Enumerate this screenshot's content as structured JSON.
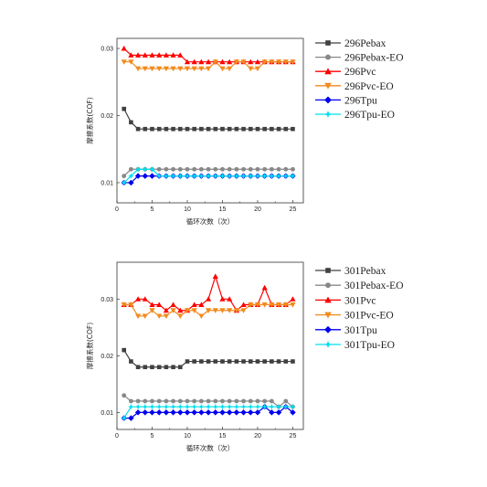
{
  "chart_data": [
    {
      "type": "line",
      "title": "",
      "xlabel": "循环次数（次）",
      "ylabel": "摩擦系数(COF)",
      "xlim": [
        0,
        26.5
      ],
      "ylim": [
        0.007,
        0.0315
      ],
      "xticks": [
        0,
        5,
        10,
        15,
        20,
        25
      ],
      "yticks": [
        0.01,
        0.02,
        0.03
      ],
      "x": [
        1,
        2,
        3,
        4,
        5,
        6,
        7,
        8,
        9,
        10,
        11,
        12,
        13,
        14,
        15,
        16,
        17,
        18,
        19,
        20,
        21,
        22,
        23,
        24,
        25
      ],
      "grid": false,
      "legend": "right",
      "series": [
        {
          "name": "296Pebax",
          "color": "#404040",
          "marker": "square",
          "values": [
            0.021,
            0.019,
            0.018,
            0.018,
            0.018,
            0.018,
            0.018,
            0.018,
            0.018,
            0.018,
            0.018,
            0.018,
            0.018,
            0.018,
            0.018,
            0.018,
            0.018,
            0.018,
            0.018,
            0.018,
            0.018,
            0.018,
            0.018,
            0.018,
            0.018
          ]
        },
        {
          "name": "296Pebax-EO",
          "color": "#888888",
          "marker": "circle",
          "values": [
            0.011,
            0.012,
            0.012,
            0.012,
            0.012,
            0.012,
            0.012,
            0.012,
            0.012,
            0.012,
            0.012,
            0.012,
            0.012,
            0.012,
            0.012,
            0.012,
            0.012,
            0.012,
            0.012,
            0.012,
            0.012,
            0.012,
            0.012,
            0.012,
            0.012
          ]
        },
        {
          "name": "296Pvc",
          "color": "#ff0000",
          "marker": "triangle-up",
          "values": [
            0.03,
            0.029,
            0.029,
            0.029,
            0.029,
            0.029,
            0.029,
            0.029,
            0.029,
            0.028,
            0.028,
            0.028,
            0.028,
            0.028,
            0.028,
            0.028,
            0.028,
            0.028,
            0.028,
            0.028,
            0.028,
            0.028,
            0.028,
            0.028,
            0.028
          ]
        },
        {
          "name": "296Pvc-EO",
          "color": "#f28a1c",
          "marker": "triangle-down",
          "values": [
            0.028,
            0.028,
            0.027,
            0.027,
            0.027,
            0.027,
            0.027,
            0.027,
            0.027,
            0.027,
            0.027,
            0.027,
            0.027,
            0.028,
            0.027,
            0.027,
            0.028,
            0.028,
            0.027,
            0.027,
            0.028,
            0.028,
            0.028,
            0.028,
            0.028
          ]
        },
        {
          "name": "296Tpu",
          "color": "#0000ee",
          "marker": "diamond",
          "values": [
            0.01,
            0.01,
            0.011,
            0.011,
            0.011,
            0.011,
            0.011,
            0.011,
            0.011,
            0.011,
            0.011,
            0.011,
            0.011,
            0.011,
            0.011,
            0.011,
            0.011,
            0.011,
            0.011,
            0.011,
            0.011,
            0.011,
            0.011,
            0.011,
            0.011
          ]
        },
        {
          "name": "296Tpu-EO",
          "color": "#00e0f0",
          "marker": "star",
          "values": [
            0.01,
            0.011,
            0.012,
            0.012,
            0.012,
            0.011,
            0.011,
            0.011,
            0.011,
            0.011,
            0.011,
            0.011,
            0.011,
            0.011,
            0.011,
            0.011,
            0.011,
            0.011,
            0.011,
            0.011,
            0.011,
            0.011,
            0.011,
            0.011,
            0.011
          ]
        }
      ]
    },
    {
      "type": "line",
      "title": "",
      "xlabel": "循环次数（次）",
      "ylabel": "摩擦系数(COF)",
      "xlim": [
        0,
        26.5
      ],
      "ylim": [
        0.007,
        0.0365
      ],
      "xticks": [
        0,
        5,
        10,
        15,
        20,
        25
      ],
      "yticks": [
        0.01,
        0.02,
        0.03
      ],
      "x": [
        1,
        2,
        3,
        4,
        5,
        6,
        7,
        8,
        9,
        10,
        11,
        12,
        13,
        14,
        15,
        16,
        17,
        18,
        19,
        20,
        21,
        22,
        23,
        24,
        25
      ],
      "grid": false,
      "legend": "right",
      "series": [
        {
          "name": "301Pebax",
          "color": "#404040",
          "marker": "square",
          "values": [
            0.021,
            0.019,
            0.018,
            0.018,
            0.018,
            0.018,
            0.018,
            0.018,
            0.018,
            0.019,
            0.019,
            0.019,
            0.019,
            0.019,
            0.019,
            0.019,
            0.019,
            0.019,
            0.019,
            0.019,
            0.019,
            0.019,
            0.019,
            0.019,
            0.019
          ]
        },
        {
          "name": "301Pebax-EO",
          "color": "#888888",
          "marker": "circle",
          "values": [
            0.013,
            0.012,
            0.012,
            0.012,
            0.012,
            0.012,
            0.012,
            0.012,
            0.012,
            0.012,
            0.012,
            0.012,
            0.012,
            0.012,
            0.012,
            0.012,
            0.012,
            0.012,
            0.012,
            0.012,
            0.012,
            0.012,
            0.011,
            0.012,
            0.011
          ]
        },
        {
          "name": "301Pvc",
          "color": "#ff0000",
          "marker": "triangle-up",
          "values": [
            0.029,
            0.029,
            0.03,
            0.03,
            0.029,
            0.029,
            0.028,
            0.029,
            0.028,
            0.028,
            0.029,
            0.029,
            0.03,
            0.034,
            0.03,
            0.03,
            0.028,
            0.029,
            0.029,
            0.029,
            0.032,
            0.029,
            0.029,
            0.029,
            0.03
          ]
        },
        {
          "name": "301Pvc-EO",
          "color": "#f28a1c",
          "marker": "triangle-down",
          "values": [
            0.029,
            0.029,
            0.027,
            0.027,
            0.028,
            0.027,
            0.027,
            0.028,
            0.027,
            0.028,
            0.028,
            0.027,
            0.028,
            0.028,
            0.028,
            0.028,
            0.028,
            0.028,
            0.029,
            0.029,
            0.029,
            0.029,
            0.029,
            0.029,
            0.029
          ]
        },
        {
          "name": "301Tpu",
          "color": "#0000ee",
          "marker": "diamond",
          "values": [
            0.009,
            0.009,
            0.01,
            0.01,
            0.01,
            0.01,
            0.01,
            0.01,
            0.01,
            0.01,
            0.01,
            0.01,
            0.01,
            0.01,
            0.01,
            0.01,
            0.01,
            0.01,
            0.01,
            0.01,
            0.011,
            0.01,
            0.01,
            0.011,
            0.01
          ]
        },
        {
          "name": "301Tpu-EO",
          "color": "#00e0f0",
          "marker": "star",
          "values": [
            0.009,
            0.011,
            0.011,
            0.011,
            0.011,
            0.011,
            0.011,
            0.011,
            0.011,
            0.011,
            0.011,
            0.011,
            0.011,
            0.011,
            0.011,
            0.011,
            0.011,
            0.011,
            0.011,
            0.011,
            0.011,
            0.011,
            0.011,
            0.011,
            0.011
          ]
        }
      ]
    }
  ]
}
